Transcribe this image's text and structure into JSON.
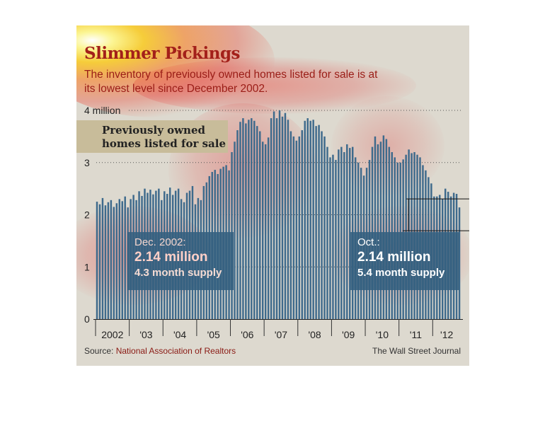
{
  "header": {
    "title": "Slimmer Pickings",
    "subtitle": "The inventory of previously owned homes listed for sale is at its lowest level since December 2002."
  },
  "legend": {
    "label_line1": "Previously owned",
    "label_line2": "homes listed for sale"
  },
  "callouts": {
    "left": {
      "date": "Dec. 2002:",
      "value": "2.14 million",
      "supply": "4.3 month supply"
    },
    "right": {
      "date": "Oct.:",
      "value": "2.14 million",
      "supply": "5.4 month supply"
    }
  },
  "footer": {
    "source_prefix": "Source: ",
    "source_org": "National Association of Realtors",
    "credit": "The Wall Street Journal"
  },
  "colors": {
    "bar": "#3e6a8c",
    "title": "#a3201a",
    "callout": "#346080",
    "background": "#ddd9cf",
    "legend_box": "#c8bc9a"
  },
  "chart_data": {
    "type": "bar",
    "ylim": [
      0,
      4
    ],
    "y_ticks": [
      {
        "value": 0,
        "label": "0"
      },
      {
        "value": 1,
        "label": "1"
      },
      {
        "value": 2,
        "label": "2"
      },
      {
        "value": 3,
        "label": "3"
      },
      {
        "value": 4,
        "label": "4 million"
      }
    ],
    "x_ticks": [
      "2002",
      "'03",
      "'04",
      "'05",
      "'06",
      "'07",
      "'08",
      "'09",
      "'10",
      "'11",
      "'12"
    ],
    "grid": "dotted horizontal",
    "start": "2002-01",
    "series": [
      {
        "values": [
          2.25,
          2.2,
          2.32,
          2.18,
          2.24,
          2.28,
          2.15,
          2.22,
          2.3,
          2.26,
          2.35,
          2.14,
          2.3,
          2.38,
          2.28,
          2.45,
          2.36,
          2.5,
          2.42,
          2.48,
          2.39,
          2.46,
          2.5,
          2.28,
          2.45,
          2.4,
          2.52,
          2.38,
          2.46,
          2.5,
          2.3,
          2.24,
          2.42,
          2.46,
          2.55,
          2.2,
          2.32,
          2.28,
          2.55,
          2.62,
          2.74,
          2.82,
          2.86,
          2.78,
          2.88,
          2.92,
          2.95,
          2.85,
          3.2,
          3.4,
          3.62,
          3.78,
          3.85,
          3.75,
          3.82,
          3.85,
          3.8,
          3.7,
          3.6,
          3.4,
          3.35,
          3.48,
          3.85,
          3.98,
          3.85,
          4.0,
          3.88,
          3.95,
          3.82,
          3.6,
          3.5,
          3.42,
          3.5,
          3.62,
          3.8,
          3.85,
          3.8,
          3.82,
          3.7,
          3.72,
          3.6,
          3.5,
          3.3,
          3.1,
          3.15,
          3.05,
          3.25,
          3.3,
          3.2,
          3.35,
          3.28,
          3.3,
          3.1,
          3.0,
          2.9,
          2.75,
          2.9,
          3.05,
          3.3,
          3.5,
          3.35,
          3.4,
          3.52,
          3.45,
          3.3,
          3.2,
          3.1,
          3.0,
          3.0,
          3.06,
          3.15,
          3.25,
          3.18,
          3.2,
          3.15,
          3.1,
          2.95,
          2.85,
          2.72,
          2.6,
          2.35,
          2.35,
          2.38,
          2.3,
          2.5,
          2.44,
          2.35,
          2.42,
          2.4,
          2.14
        ]
      }
    ]
  }
}
